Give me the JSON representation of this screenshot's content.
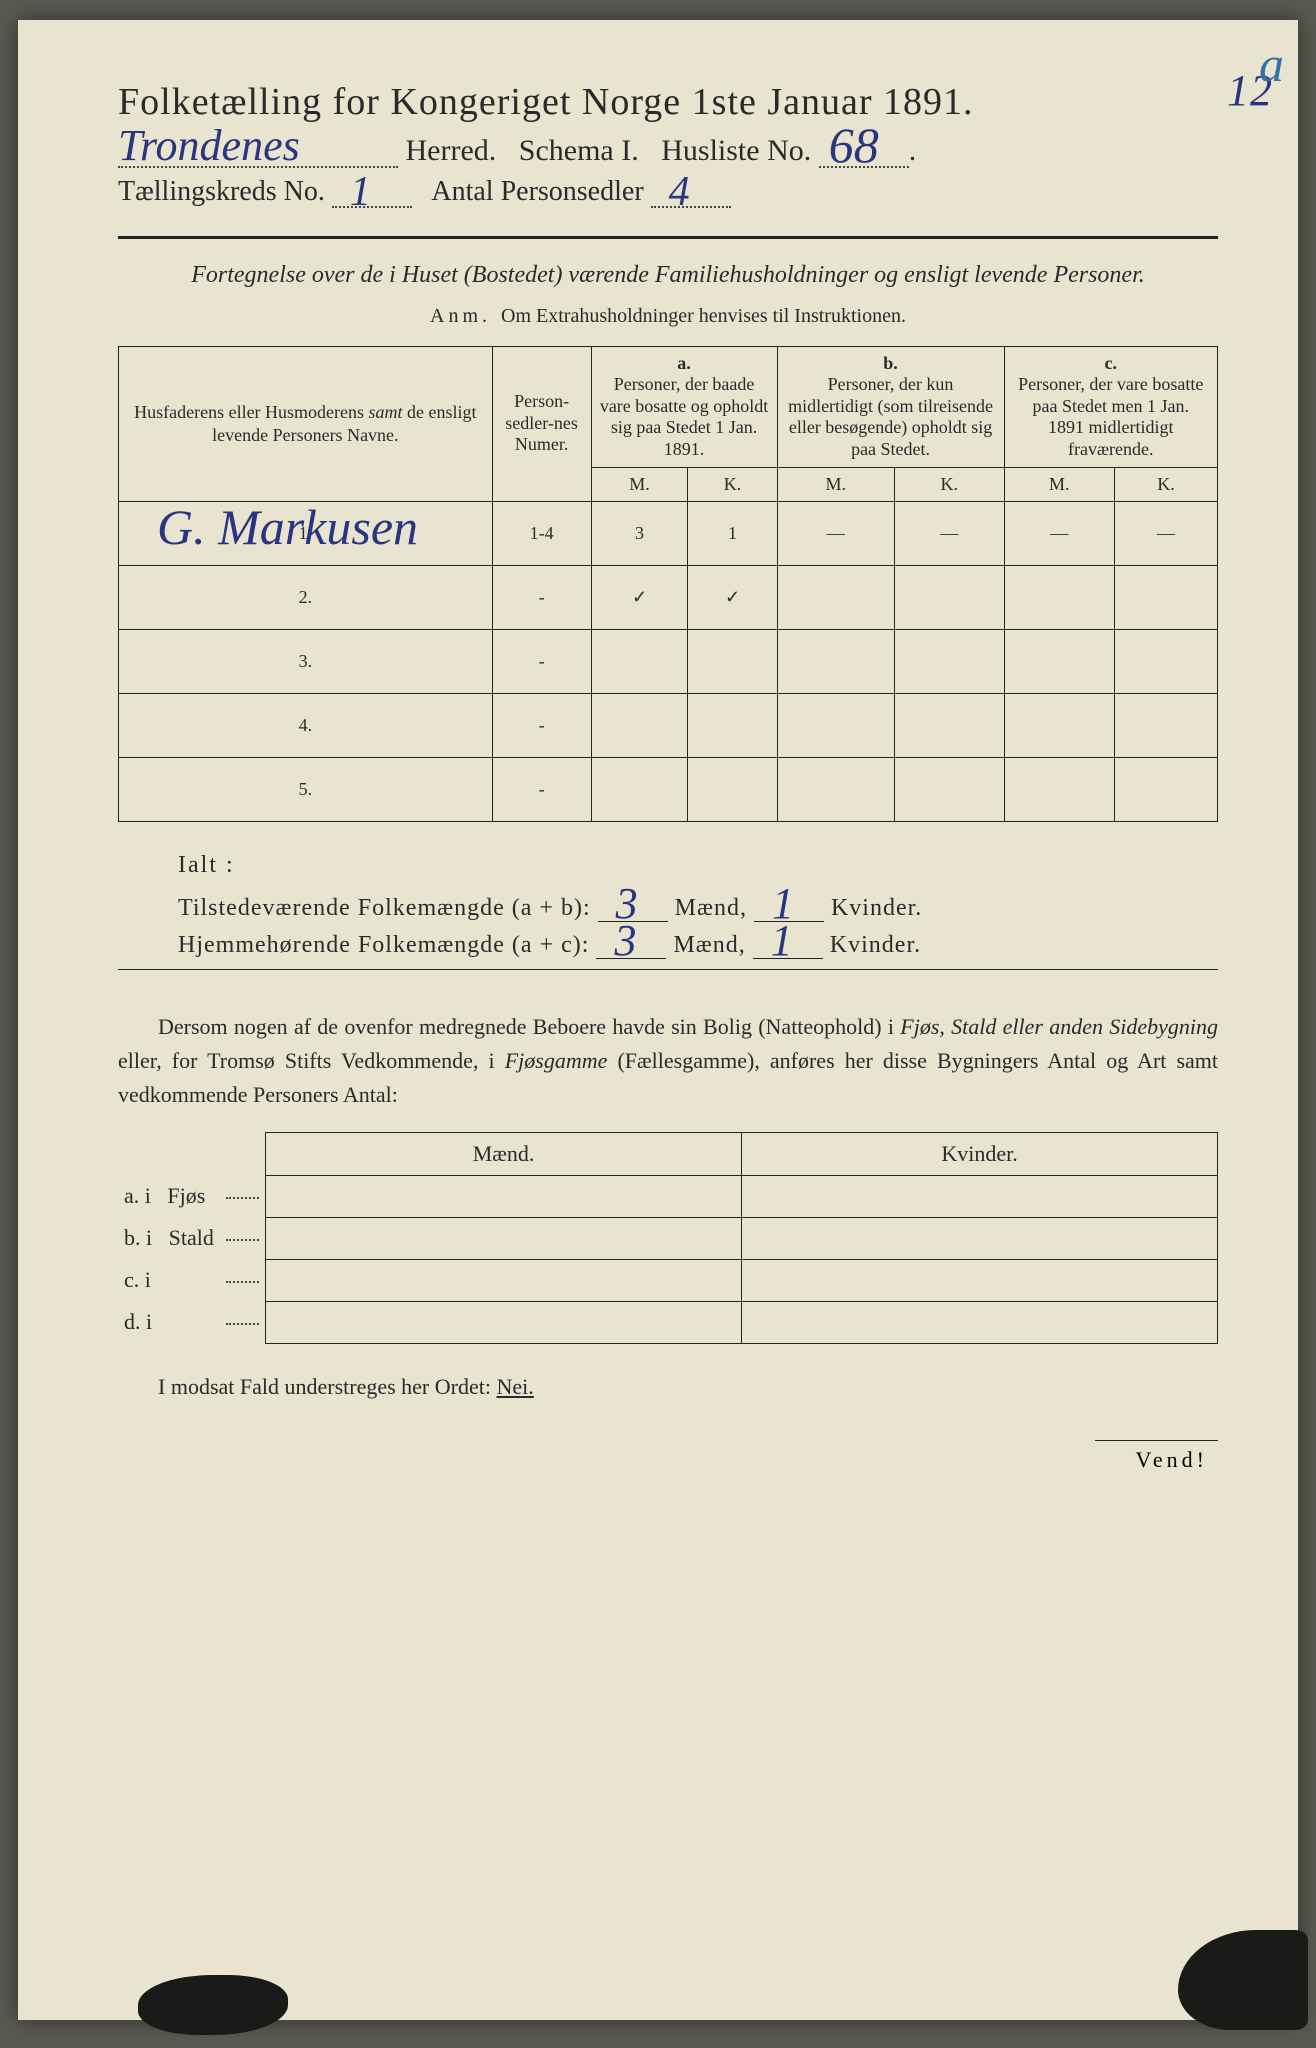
{
  "header": {
    "title": "Folketælling for Kongeriget Norge 1ste Januar 1891.",
    "herred_hw": "Trondenes",
    "herred_label": "Herred.",
    "schema": "Schema I.",
    "husliste_label": "Husliste No.",
    "husliste_hw": "68",
    "annotation_num": "12",
    "annotation_a": "a",
    "kreds_label": "Tællingskreds No.",
    "kreds_hw": "1",
    "antal_label": "Antal Personsedler",
    "antal_hw": "4"
  },
  "subtitle": {
    "line": "Fortegnelse over de i Huset (Bostedet) værende Familiehusholdninger og ensligt levende Personer.",
    "anm_label": "Anm.",
    "anm_text": "Om Extrahusholdninger henvises til Instruktionen."
  },
  "table": {
    "headers": {
      "name": "Husfaderens eller Husmoderens samt de ensligt levende Personers Navne.",
      "numer": "Person-sedler-nes Numer.",
      "a_label": "a.",
      "a_text": "Personer, der baade vare bosatte og opholdt sig paa Stedet 1 Jan. 1891.",
      "b_label": "b.",
      "b_text": "Personer, der kun midlertidigt (som tilreisende eller besøgende) opholdt sig paa Stedet.",
      "c_label": "c.",
      "c_text": "Personer, der vare bosatte paa Stedet men 1 Jan. 1891 midlertidigt fraværende.",
      "M": "M.",
      "K": "K."
    },
    "rows": [
      {
        "n": "1.",
        "name_hw": "G. Markusen",
        "numer": "1-4",
        "aM": "3",
        "aK": "1",
        "bM": "—",
        "bK": "—",
        "cM": "—",
        "cK": "—"
      },
      {
        "n": "2.",
        "name_hw": "",
        "numer": "-",
        "aM": "✓",
        "aK": "✓",
        "bM": "",
        "bK": "",
        "cM": "",
        "cK": ""
      },
      {
        "n": "3.",
        "name_hw": "",
        "numer": "-",
        "aM": "",
        "aK": "",
        "bM": "",
        "bK": "",
        "cM": "",
        "cK": ""
      },
      {
        "n": "4.",
        "name_hw": "",
        "numer": "-",
        "aM": "",
        "aK": "",
        "bM": "",
        "bK": "",
        "cM": "",
        "cK": ""
      },
      {
        "n": "5.",
        "name_hw": "",
        "numer": "-",
        "aM": "",
        "aK": "",
        "bM": "",
        "bK": "",
        "cM": "",
        "cK": ""
      }
    ]
  },
  "totals": {
    "ialt": "Ialt :",
    "tilstede_label": "Tilstedeværende Folkemængde (a + b):",
    "tilstede_m": "3",
    "tilstede_k": "1",
    "hjemme_label": "Hjemmehørende Folkemængde (a + c):",
    "hjemme_m": "3",
    "hjemme_k": "1",
    "maend": "Mænd,",
    "kvinder": "Kvinder."
  },
  "dersom": {
    "text1": "Dersom nogen af de ovenfor medregnede Beboere havde sin Bolig (Natteophold) i ",
    "em1": "Fjøs, Stald eller anden Sidebygning",
    "text2": " eller, for Tromsø Stifts Vedkommende, i ",
    "em2": "Fjøsgamme",
    "text3": " (Fællesgamme), anføres her disse Bygningers Antal og Art samt vedkommende Personers Antal:"
  },
  "abcd": {
    "maend": "Mænd.",
    "kvinder": "Kvinder.",
    "rows": [
      {
        "lbl": "a.  i",
        "type": "Fjøs"
      },
      {
        "lbl": "b.  i",
        "type": "Stald"
      },
      {
        "lbl": "c.  i",
        "type": ""
      },
      {
        "lbl": "d.  i",
        "type": ""
      }
    ]
  },
  "modsat": {
    "text": "I modsat Fald understreges her Ordet: ",
    "nei": "Nei."
  },
  "vend": "Vend!",
  "colors": {
    "paper": "#e8e4d0",
    "ink": "#2a2a2a",
    "handwriting": "#2a3580",
    "blue_annot": "#3670a8",
    "purple_check": "#8a5a8a",
    "torn": "#1a1a18",
    "bg": "#5a5a52"
  },
  "fonts": {
    "body_pt": 22,
    "title_pt": 38,
    "hw_pt": 44
  }
}
